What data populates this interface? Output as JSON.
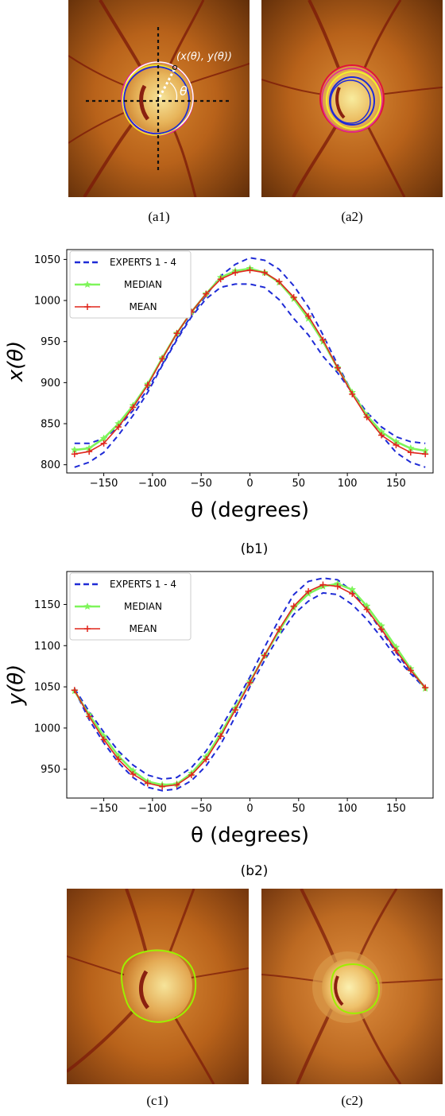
{
  "figure": {
    "panel_a1": {
      "label": "(a1)",
      "annotation_point": "(x(θ), y(θ))",
      "annotation_angle": "θ"
    },
    "panel_a2": {
      "label": "(a2)"
    },
    "panel_c1": {
      "label": "(c1)"
    },
    "panel_c2": {
      "label": "(c2)"
    },
    "colors": {
      "fundus_dark": "#5a2a08",
      "fundus_mid": "#b8621a",
      "disc_light": "#f4e08a",
      "vessel": "#7a1808",
      "contour_green": "#9cf000",
      "contour_yellow": "#f3ef2b",
      "contour_blue": "#1f2bd6",
      "contour_magenta": "#e02a9a",
      "contour_red": "#e0143a",
      "contour_white": "#ffffff"
    }
  },
  "chart_data": [
    {
      "type": "line",
      "panel_label": "(b1)",
      "xlabel": "θ (degrees)",
      "ylabel": "x(θ)",
      "xlim": [
        -188,
        188
      ],
      "ylim": [
        790,
        1062
      ],
      "xticks": [
        -150,
        -100,
        -50,
        0,
        50,
        100,
        150
      ],
      "yticks": [
        800,
        850,
        900,
        950,
        1000,
        1050
      ],
      "grid": false,
      "legend_position": "top-left",
      "series": [
        {
          "name": "EXPERTS 1 - 4",
          "color": "#1f2bd6",
          "style": "dashed",
          "lines": [
            {
              "x": [
                -180,
                -165,
                -150,
                -135,
                -120,
                -105,
                -90,
                -75,
                -60,
                -45,
                -30,
                -15,
                0,
                15,
                30,
                45,
                60,
                75,
                90,
                105,
                120,
                135,
                150,
                165,
                180
              ],
              "y": [
                826,
                826,
                832,
                846,
                866,
                892,
                922,
                954,
                982,
                1006,
                1030,
                1044,
                1052,
                1049,
                1038,
                1018,
                992,
                958,
                922,
                888,
                864,
                846,
                834,
                828,
                826
              ]
            },
            {
              "x": [
                -180,
                -165,
                -150,
                -135,
                -120,
                -105,
                -90,
                -75,
                -60,
                -45,
                -30,
                -15,
                0,
                15,
                30,
                45,
                60,
                75,
                90,
                105,
                120,
                135,
                150,
                165,
                180
              ],
              "y": [
                797,
                803,
                815,
                836,
                860,
                888,
                921,
                952,
                980,
                1002,
                1016,
                1020,
                1020,
                1016,
                1001,
                978,
                958,
                932,
                912,
                888,
                860,
                836,
                815,
                803,
                797
              ]
            }
          ]
        },
        {
          "name": "MEDIAN",
          "color": "#7ef55a",
          "marker": "star",
          "x": [
            -180,
            -165,
            -150,
            -135,
            -120,
            -105,
            -90,
            -75,
            -60,
            -45,
            -30,
            -15,
            0,
            15,
            30,
            45,
            60,
            75,
            90,
            105,
            120,
            135,
            150,
            165,
            180
          ],
          "y": [
            818,
            820,
            832,
            850,
            872,
            898,
            930,
            960,
            986,
            1008,
            1028,
            1036,
            1039,
            1034,
            1022,
            1002,
            978,
            950,
            918,
            888,
            860,
            840,
            828,
            820,
            817
          ]
        },
        {
          "name": "MEAN",
          "color": "#e0261c",
          "marker": "plus",
          "x": [
            -180,
            -165,
            -150,
            -135,
            -120,
            -105,
            -90,
            -75,
            -60,
            -45,
            -30,
            -15,
            0,
            15,
            30,
            45,
            60,
            75,
            90,
            105,
            120,
            135,
            150,
            165,
            180
          ],
          "y": [
            813,
            816,
            826,
            846,
            870,
            897,
            929,
            960,
            986,
            1008,
            1026,
            1034,
            1037,
            1034,
            1023,
            1004,
            981,
            952,
            918,
            886,
            858,
            836,
            824,
            815,
            813
          ]
        }
      ]
    },
    {
      "type": "line",
      "panel_label": "(b2)",
      "xlabel": "θ (degrees)",
      "ylabel": "y(θ)",
      "xlim": [
        -188,
        188
      ],
      "ylim": [
        915,
        1190
      ],
      "xticks": [
        -150,
        -100,
        -50,
        0,
        50,
        100,
        150
      ],
      "yticks": [
        950,
        1000,
        1050,
        1100,
        1150
      ],
      "grid": false,
      "legend_position": "top-left",
      "series": [
        {
          "name": "EXPERTS 1 - 4",
          "color": "#1f2bd6",
          "style": "dashed",
          "lines": [
            {
              "x": [
                -180,
                -165,
                -150,
                -135,
                -120,
                -105,
                -90,
                -75,
                -60,
                -45,
                -30,
                -15,
                0,
                15,
                30,
                45,
                60,
                75,
                90,
                105,
                120,
                135,
                150,
                165,
                180
              ],
              "y": [
                1048,
                1020,
                995,
                972,
                955,
                943,
                938,
                940,
                952,
                972,
                1000,
                1030,
                1062,
                1098,
                1132,
                1162,
                1178,
                1182,
                1180,
                1166,
                1144,
                1118,
                1092,
                1068,
                1050
              ]
            },
            {
              "x": [
                -180,
                -165,
                -150,
                -135,
                -120,
                -105,
                -90,
                -75,
                -60,
                -45,
                -30,
                -15,
                0,
                15,
                30,
                45,
                60,
                75,
                90,
                105,
                120,
                135,
                150,
                165,
                180
              ],
              "y": [
                1046,
                1010,
                982,
                958,
                940,
                928,
                924,
                926,
                936,
                954,
                980,
                1014,
                1050,
                1082,
                1112,
                1138,
                1154,
                1164,
                1162,
                1150,
                1132,
                1110,
                1086,
                1066,
                1048
              ]
            }
          ]
        },
        {
          "name": "MEDIAN",
          "color": "#7ef55a",
          "marker": "star",
          "x": [
            -180,
            -165,
            -150,
            -135,
            -120,
            -105,
            -90,
            -75,
            -60,
            -45,
            -30,
            -15,
            0,
            15,
            30,
            45,
            60,
            75,
            90,
            105,
            120,
            135,
            150,
            165,
            180
          ],
          "y": [
            1045,
            1016,
            990,
            966,
            948,
            935,
            931,
            932,
            945,
            965,
            993,
            1024,
            1056,
            1088,
            1118,
            1146,
            1163,
            1172,
            1175,
            1168,
            1148,
            1124,
            1098,
            1072,
            1048
          ]
        },
        {
          "name": "MEAN",
          "color": "#e0261c",
          "marker": "plus",
          "x": [
            -180,
            -165,
            -150,
            -135,
            -120,
            -105,
            -90,
            -75,
            -60,
            -45,
            -30,
            -15,
            0,
            15,
            30,
            45,
            60,
            75,
            90,
            105,
            120,
            135,
            150,
            165,
            180
          ],
          "y": [
            1046,
            1014,
            986,
            962,
            944,
            933,
            929,
            931,
            943,
            962,
            990,
            1022,
            1055,
            1088,
            1120,
            1148,
            1166,
            1174,
            1172,
            1163,
            1144,
            1120,
            1094,
            1070,
            1049
          ]
        }
      ]
    }
  ]
}
